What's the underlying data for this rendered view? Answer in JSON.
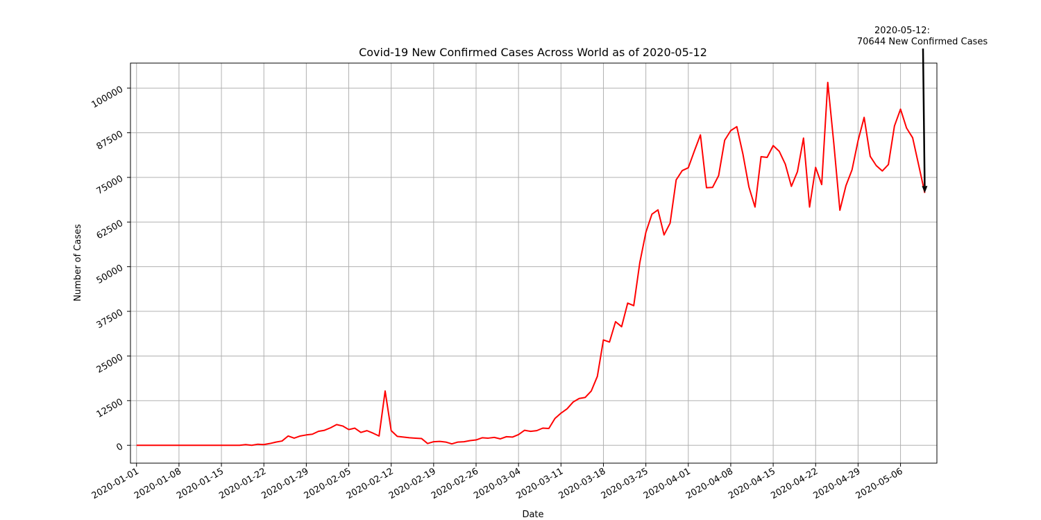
{
  "chart_data": {
    "type": "line",
    "title": "Covid-19 New Confirmed Cases Across World as of 2020-05-12",
    "xlabel": "Date",
    "ylabel": "Number of Cases",
    "x_start": "2020-01-01",
    "x_end": "2020-05-12",
    "xlim": [
      "2019-12-31",
      "2020-05-12"
    ],
    "ylim": [
      -5000,
      107000
    ],
    "grid": true,
    "line_color": "#ff0000",
    "x_tick_labels": [
      "2020-01-01",
      "2020-01-08",
      "2020-01-15",
      "2020-01-22",
      "2020-01-29",
      "2020-02-05",
      "2020-02-12",
      "2020-02-19",
      "2020-02-26",
      "2020-03-04",
      "2020-03-11",
      "2020-03-18",
      "2020-03-25",
      "2020-04-01",
      "2020-04-08",
      "2020-04-15",
      "2020-04-22",
      "2020-04-29",
      "2020-05-06"
    ],
    "y_ticks": [
      0,
      12500,
      25000,
      37500,
      50000,
      62500,
      75000,
      87500,
      100000
    ],
    "y_tick_labels": [
      "0",
      "12500",
      "25000",
      "37500",
      "50000",
      "62500",
      "75000",
      "87500",
      "100000"
    ],
    "series": [
      {
        "values": [
          0,
          0,
          0,
          0,
          0,
          0,
          0,
          0,
          0,
          0,
          0,
          0,
          0,
          0,
          0,
          0,
          0,
          0,
          200,
          0,
          300,
          200,
          500,
          900,
          1200,
          2600,
          2000,
          2600,
          2900,
          3100,
          3900,
          4200,
          4900,
          5800,
          5400,
          4400,
          4800,
          3600,
          4100,
          3400,
          2600,
          15200,
          4100,
          2500,
          2300,
          2100,
          2000,
          1900,
          500,
          1000,
          1100,
          900,
          400,
          900,
          1000,
          1300,
          1500,
          2100,
          2000,
          2200,
          1800,
          2400,
          2300,
          3000,
          4200,
          3900,
          4100,
          4800,
          4700,
          7500,
          9000,
          10200,
          12100,
          13100,
          13400,
          15200,
          19300,
          29500,
          28900,
          34600,
          33200,
          39800,
          39100,
          51100,
          59600,
          64700,
          65900,
          58900,
          62200,
          74300,
          76900,
          77700,
          82400,
          86900,
          72100,
          72200,
          75500,
          85400,
          88100,
          89200,
          81600,
          72300,
          66700,
          80800,
          80600,
          83900,
          82300,
          78700,
          72500,
          76600,
          86000,
          66700,
          77800,
          73000,
          101600,
          84500,
          65800,
          72700,
          77100,
          85300,
          91800,
          80900,
          78300,
          76800,
          78600,
          89400,
          94100,
          88800,
          86100,
          78400,
          70644
        ]
      }
    ],
    "annotation": {
      "line1": "2020-05-12:",
      "line2": "70644 New Confirmed Cases"
    }
  }
}
